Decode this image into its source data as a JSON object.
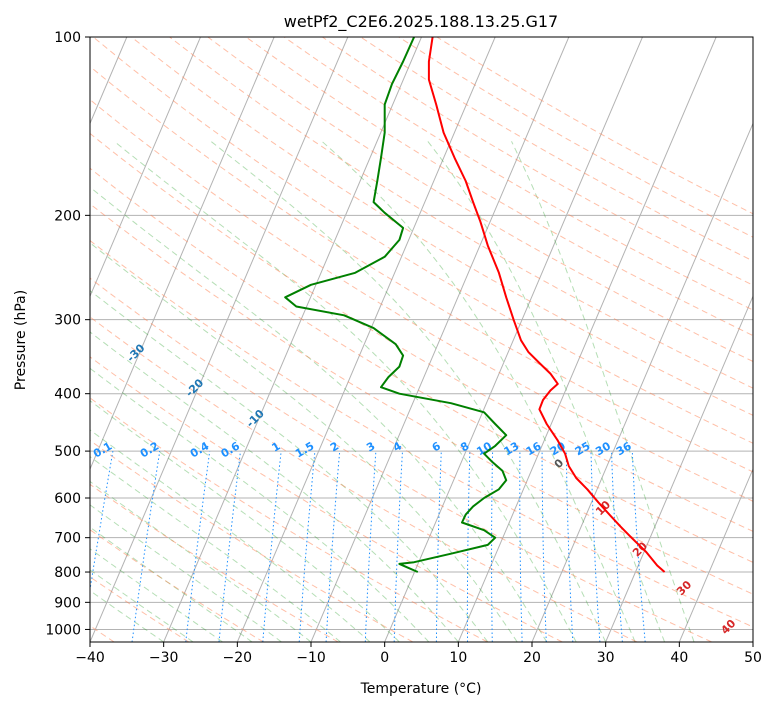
{
  "chart_data": {
    "type": "line",
    "title": "wetPf2_C2E6.2025.188.13.25.G17",
    "xlabel": "Temperature (°C)",
    "ylabel": "Pressure (hPa)",
    "xlim": [
      -40,
      50
    ],
    "ylim": [
      1050,
      100
    ],
    "y_scale": "log",
    "grid": true,
    "x_ticks": [
      -40,
      -30,
      -20,
      -10,
      0,
      10,
      20,
      30,
      40,
      50
    ],
    "y_ticks": [
      100,
      200,
      300,
      400,
      500,
      600,
      700,
      800,
      900,
      1000
    ],
    "series": [
      {
        "color": "#ff0000",
        "points": [
          [
            38,
            800
          ],
          [
            37,
            780
          ],
          [
            35.5,
            740
          ],
          [
            33.5,
            700
          ],
          [
            32,
            670
          ],
          [
            30.5,
            640
          ],
          [
            29,
            610
          ],
          [
            27.5,
            580
          ],
          [
            26,
            555
          ],
          [
            25,
            530
          ],
          [
            24.5,
            505
          ],
          [
            23.5,
            480
          ],
          [
            22,
            450
          ],
          [
            21,
            425
          ],
          [
            21.5,
            410
          ],
          [
            22.5,
            395
          ],
          [
            23.5,
            385
          ],
          [
            22.5,
            370
          ],
          [
            21,
            355
          ],
          [
            19.5,
            340
          ],
          [
            18.5,
            325
          ],
          [
            17.5,
            300
          ],
          [
            16.5,
            275
          ],
          [
            15.5,
            250
          ],
          [
            14,
            225
          ],
          [
            13,
            205
          ],
          [
            12,
            190
          ],
          [
            11,
            175
          ],
          [
            9.5,
            160
          ],
          [
            8,
            145
          ],
          [
            7,
            130
          ],
          [
            6,
            118
          ],
          [
            6,
            110
          ],
          [
            6.5,
            100
          ]
        ]
      },
      {
        "color": "#008000",
        "points": [
          [
            4.5,
            800
          ],
          [
            3,
            785
          ],
          [
            2,
            775
          ],
          [
            4,
            770
          ],
          [
            9,
            745
          ],
          [
            14,
            720
          ],
          [
            15,
            700
          ],
          [
            13.5,
            680
          ],
          [
            10.5,
            660
          ],
          [
            11,
            640
          ],
          [
            12,
            620
          ],
          [
            13.5,
            600
          ],
          [
            15.5,
            580
          ],
          [
            16.5,
            560
          ],
          [
            16,
            540
          ],
          [
            14.5,
            520
          ],
          [
            13.5,
            505
          ],
          [
            15,
            490
          ],
          [
            16.5,
            470
          ],
          [
            15,
            450
          ],
          [
            13.5,
            430
          ],
          [
            9,
            415
          ],
          [
            2,
            400
          ],
          [
            -0.5,
            390
          ],
          [
            0.5,
            375
          ],
          [
            2,
            360
          ],
          [
            2.5,
            345
          ],
          [
            1.5,
            330
          ],
          [
            -1.5,
            310
          ],
          [
            -5.5,
            295
          ],
          [
            -12,
            285
          ],
          [
            -13.5,
            275
          ],
          [
            -10,
            262
          ],
          [
            -4,
            250
          ],
          [
            0,
            235
          ],
          [
            2,
            220
          ],
          [
            2.5,
            210
          ],
          [
            0,
            198
          ],
          [
            -1.5,
            190
          ],
          [
            -1,
            175
          ],
          [
            -0.5,
            160
          ],
          [
            0,
            145
          ],
          [
            0,
            130
          ],
          [
            1,
            120
          ],
          [
            2.5,
            110
          ],
          [
            4,
            100
          ]
        ]
      }
    ],
    "dry_adiabats": [
      -100,
      -90,
      -80,
      -70,
      -60,
      -50,
      -40,
      -30,
      -20,
      -10
    ],
    "mixing_ratios": [
      "0.1",
      "0.2",
      "0.4",
      "0.6",
      "1",
      "1.5",
      "2",
      "3",
      "4",
      "6",
      "8",
      "10",
      "13",
      "16",
      "20",
      "25",
      "30",
      "36"
    ],
    "moist_adiabats": [
      0,
      10,
      20,
      30,
      40
    ]
  }
}
